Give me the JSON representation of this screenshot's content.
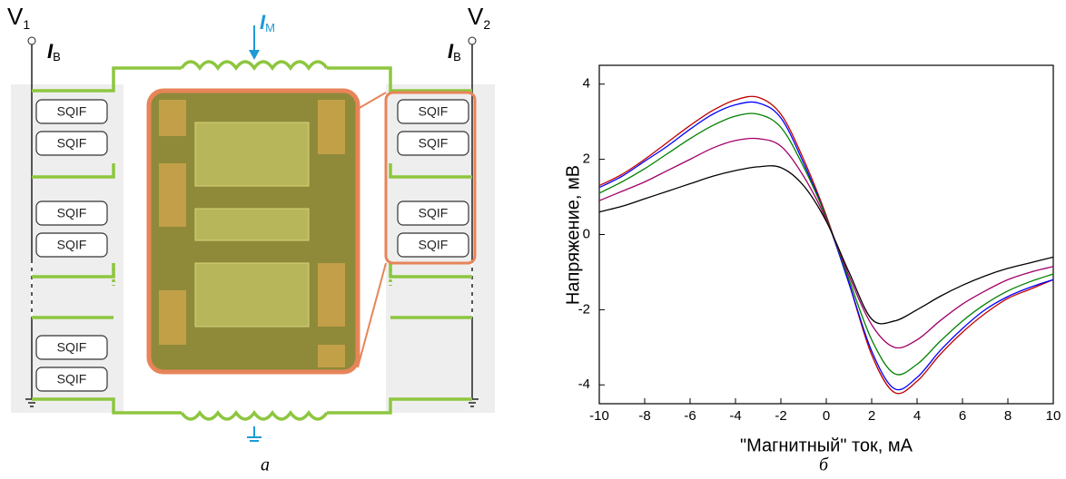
{
  "diagram": {
    "v1": {
      "main": "V",
      "sub": "1"
    },
    "v2": {
      "main": "V",
      "sub": "2"
    },
    "ib_left": {
      "main": "I",
      "sub": "B"
    },
    "ib_right": {
      "main": "I",
      "sub": "B"
    },
    "im": {
      "main": "I",
      "sub": "M"
    },
    "blocks_left": [
      "SQIF",
      "SQIF",
      "SQIF",
      "SQIF",
      "SQIF",
      "SQIF"
    ],
    "blocks_right": [
      "SQIF",
      "SQIF",
      "SQIF",
      "SQIF"
    ]
  },
  "captions": [
    "а",
    "б"
  ],
  "chart_data": {
    "type": "line",
    "x_label": "\"Магнитный\" ток, мА",
    "y_label": "Напряжение, мВ",
    "x": [
      -10,
      -9,
      -8,
      -7,
      -6,
      -5,
      -4,
      -3,
      -2,
      -1,
      0,
      1,
      2,
      3,
      4,
      5,
      6,
      7,
      8,
      9,
      10
    ],
    "series": [
      {
        "color": "#c00000",
        "values": [
          1.3,
          1.6,
          2.0,
          2.45,
          2.9,
          3.3,
          3.58,
          3.65,
          3.2,
          2.0,
          0.5,
          -1.3,
          -3.2,
          -4.2,
          -3.9,
          -3.2,
          -2.6,
          -2.1,
          -1.7,
          -1.45,
          -1.2
        ]
      },
      {
        "color": "#0000ff",
        "values": [
          1.25,
          1.55,
          1.95,
          2.35,
          2.8,
          3.2,
          3.45,
          3.5,
          3.1,
          1.9,
          0.45,
          -1.3,
          -3.1,
          -4.1,
          -3.8,
          -3.1,
          -2.5,
          -2.0,
          -1.65,
          -1.4,
          -1.2
        ]
      },
      {
        "color": "#008000",
        "values": [
          1.1,
          1.4,
          1.75,
          2.15,
          2.55,
          2.9,
          3.15,
          3.2,
          2.85,
          1.8,
          0.45,
          -1.2,
          -2.8,
          -3.7,
          -3.45,
          -2.85,
          -2.3,
          -1.85,
          -1.5,
          -1.25,
          -1.05
        ]
      },
      {
        "color": "#a0006a",
        "values": [
          0.9,
          1.15,
          1.4,
          1.7,
          2.0,
          2.3,
          2.5,
          2.55,
          2.35,
          1.55,
          0.4,
          -1.1,
          -2.4,
          -3.0,
          -2.8,
          -2.3,
          -1.85,
          -1.5,
          -1.2,
          -1.0,
          -0.85
        ]
      },
      {
        "color": "#000000",
        "values": [
          0.6,
          0.75,
          0.95,
          1.15,
          1.35,
          1.55,
          1.7,
          1.8,
          1.78,
          1.3,
          0.35,
          -1.0,
          -2.25,
          -2.3,
          -2.0,
          -1.65,
          -1.35,
          -1.1,
          -0.9,
          -0.75,
          -0.6
        ]
      }
    ],
    "xlim": [
      -10,
      10
    ],
    "ylim": [
      -4.5,
      4.5
    ],
    "xticks": [
      -10,
      -8,
      -6,
      -4,
      -2,
      0,
      2,
      4,
      6,
      8,
      10
    ],
    "yticks": [
      -4,
      -2,
      0,
      2,
      4
    ]
  }
}
